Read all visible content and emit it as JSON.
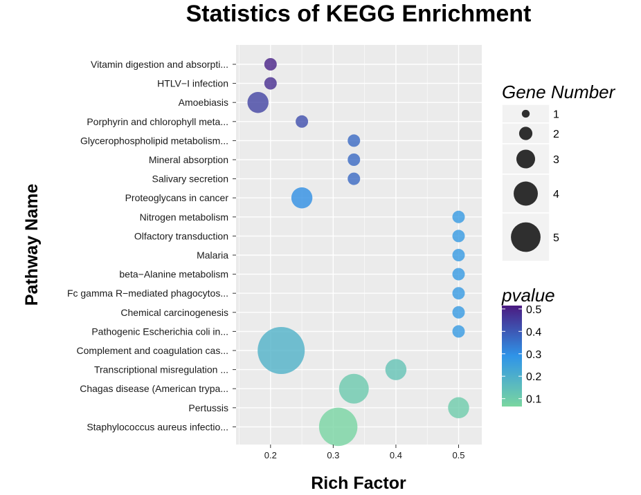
{
  "chart_data": {
    "type": "scatter",
    "title": "Statistics of KEGG Enrichment",
    "xlabel": "Rich Factor",
    "ylabel": "Pathway Name",
    "xlim": [
      0.145,
      0.537
    ],
    "xticks": [
      "0.2",
      "0.3",
      "0.4",
      "0.5"
    ],
    "grid": true,
    "pathways": [
      {
        "name": "Vitamin digestion and absorpti...",
        "rich_factor": 0.2,
        "gene_number": 1,
        "pvalue": 0.5
      },
      {
        "name": "HTLV−I infection",
        "rich_factor": 0.2,
        "gene_number": 1,
        "pvalue": 0.48
      },
      {
        "name": "Amoebiasis",
        "rich_factor": 0.18,
        "gene_number": 2,
        "pvalue": 0.44
      },
      {
        "name": "Porphyrin and chlorophyll meta...",
        "rich_factor": 0.25,
        "gene_number": 1,
        "pvalue": 0.42
      },
      {
        "name": "Glycerophospholipid metabolism...",
        "rich_factor": 0.333,
        "gene_number": 1,
        "pvalue": 0.37
      },
      {
        "name": "Mineral absorption",
        "rich_factor": 0.333,
        "gene_number": 1,
        "pvalue": 0.37
      },
      {
        "name": "Salivary secretion",
        "rich_factor": 0.333,
        "gene_number": 1,
        "pvalue": 0.37
      },
      {
        "name": "Proteoglycans in cancer",
        "rich_factor": 0.25,
        "gene_number": 2,
        "pvalue": 0.3
      },
      {
        "name": "Nitrogen metabolism",
        "rich_factor": 0.5,
        "gene_number": 1,
        "pvalue": 0.27
      },
      {
        "name": "Olfactory transduction",
        "rich_factor": 0.5,
        "gene_number": 1,
        "pvalue": 0.27
      },
      {
        "name": "Malaria",
        "rich_factor": 0.5,
        "gene_number": 1,
        "pvalue": 0.27
      },
      {
        "name": "beta−Alanine metabolism",
        "rich_factor": 0.5,
        "gene_number": 1,
        "pvalue": 0.27
      },
      {
        "name": "Fc gamma R−mediated phagocytos...",
        "rich_factor": 0.5,
        "gene_number": 1,
        "pvalue": 0.27
      },
      {
        "name": "Chemical carcinogenesis",
        "rich_factor": 0.5,
        "gene_number": 1,
        "pvalue": 0.27
      },
      {
        "name": "Pathogenic Escherichia coli in...",
        "rich_factor": 0.5,
        "gene_number": 1,
        "pvalue": 0.27
      },
      {
        "name": "Complement and coagulation cas...",
        "rich_factor": 0.217,
        "gene_number": 5,
        "pvalue": 0.19
      },
      {
        "name": "Transcriptional misregulation ...",
        "rich_factor": 0.4,
        "gene_number": 2,
        "pvalue": 0.13
      },
      {
        "name": "Chagas disease (American trypa...",
        "rich_factor": 0.333,
        "gene_number": 3,
        "pvalue": 0.11
      },
      {
        "name": "Pertussis",
        "rich_factor": 0.5,
        "gene_number": 2,
        "pvalue": 0.1
      },
      {
        "name": "Staphylococcus aureus infectio...",
        "rich_factor": 0.308,
        "gene_number": 4,
        "pvalue": 0.07
      }
    ],
    "size_legend": {
      "title": "Gene Number",
      "values": [
        1,
        2,
        3,
        4,
        5
      ],
      "labels": [
        "1",
        "2",
        "3",
        "4",
        "5"
      ]
    },
    "color_legend": {
      "title": "pvalue",
      "range": [
        0.065,
        0.515
      ],
      "ticks": [
        0.1,
        0.2,
        0.3,
        0.4,
        0.5
      ],
      "tick_labels": [
        "0.1",
        "0.2",
        "0.3",
        "0.4",
        "0.5"
      ],
      "low_color": "#7ad6a0",
      "mid_color": "#2f94e8",
      "high_color": "#4b1a80"
    },
    "panel_background": "#ebebeb",
    "grid_color": "#ffffff",
    "point_alpha": 0.8
  }
}
